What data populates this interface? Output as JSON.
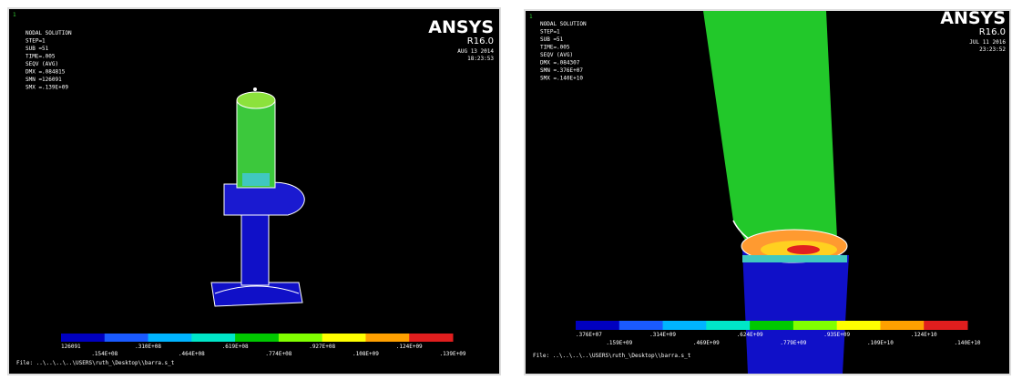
{
  "panels": [
    {
      "window_number": "1",
      "info": [
        "NODAL SOLUTION",
        "STEP=1",
        "SUB =51",
        "TIME=.005",
        "SEQV     (AVG)",
        "DMX =.084815",
        "SMN =126091",
        "SMX =.139E+09"
      ],
      "logo": "ANSYS",
      "version": "R16.0",
      "date": "AUG 13 2014",
      "time": "18:23:53",
      "legend_labels": [
        "126091",
        ".154E+08",
        ".310E+08",
        ".464E+08",
        ".619E+08",
        ".774E+08",
        ".927E+08",
        ".108E+09",
        ".124E+09",
        ".139E+09"
      ],
      "file": "File: ..\\..\\..\\..\\USERS\\ruth_\\Desktop\\\\barra.s_t"
    },
    {
      "window_number": "1",
      "info": [
        "NODAL SOLUTION",
        "STEP=1",
        "SUB =51",
        "TIME=.005",
        "SEQV     (AVG)",
        "DMX =.084307",
        "SMN =.376E+07",
        "SMX =.140E+10"
      ],
      "logo": "ANSYS",
      "version": "R16.0",
      "date": "JUL 11 2016",
      "time": "23:23:52",
      "legend_labels": [
        ".376E+07",
        ".159E+09",
        ".314E+09",
        ".469E+09",
        ".624E+09",
        ".779E+09",
        ".935E+09",
        ".109E+10",
        ".124E+10",
        ".140E+10"
      ],
      "file": "File: ..\\..\\..\\..\\USERS\\ruth_\\Desktop\\\\barra.s_t"
    }
  ]
}
